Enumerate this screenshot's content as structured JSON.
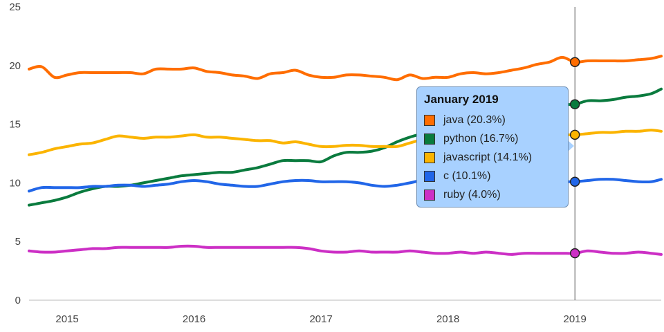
{
  "chart_data": {
    "type": "line",
    "x_ticks": [
      "2015",
      "2016",
      "2017",
      "2018",
      "2019"
    ],
    "y_ticks": [
      "0",
      "5",
      "10",
      "15",
      "20",
      "25"
    ],
    "ylim": [
      0,
      25
    ],
    "xlim": [
      2014.7,
      2019.68
    ],
    "hover_x": 2019.0,
    "x": [
      2014.7,
      2014.8,
      2014.9,
      2015.0,
      2015.1,
      2015.2,
      2015.3,
      2015.4,
      2015.5,
      2015.6,
      2015.7,
      2015.8,
      2015.9,
      2016.0,
      2016.1,
      2016.2,
      2016.3,
      2016.4,
      2016.5,
      2016.6,
      2016.7,
      2016.8,
      2016.9,
      2017.0,
      2017.1,
      2017.2,
      2017.3,
      2017.4,
      2017.5,
      2017.6,
      2017.7,
      2017.8,
      2017.9,
      2018.0,
      2018.1,
      2018.2,
      2018.3,
      2018.4,
      2018.5,
      2018.6,
      2018.7,
      2018.8,
      2018.9,
      2019.0,
      2019.1,
      2019.2,
      2019.3,
      2019.4,
      2019.5,
      2019.6,
      2019.68
    ],
    "series": [
      {
        "name": "java",
        "color": "#ff6d00",
        "tooltip": "java (20.3%)",
        "values": [
          19.7,
          19.9,
          19.0,
          19.2,
          19.4,
          19.4,
          19.4,
          19.4,
          19.4,
          19.3,
          19.7,
          19.7,
          19.7,
          19.8,
          19.5,
          19.4,
          19.2,
          19.1,
          18.9,
          19.3,
          19.4,
          19.6,
          19.2,
          19.0,
          19.0,
          19.2,
          19.2,
          19.1,
          19.0,
          18.8,
          19.2,
          18.9,
          19.0,
          19.0,
          19.3,
          19.4,
          19.3,
          19.4,
          19.6,
          19.8,
          20.1,
          20.3,
          20.7,
          20.3,
          20.4,
          20.4,
          20.4,
          20.4,
          20.5,
          20.6,
          20.8
        ]
      },
      {
        "name": "python",
        "color": "#0a7b3e",
        "tooltip": "python (16.7%)",
        "values": [
          8.1,
          8.3,
          8.5,
          8.8,
          9.2,
          9.5,
          9.7,
          9.7,
          9.8,
          10.0,
          10.2,
          10.4,
          10.6,
          10.7,
          10.8,
          10.9,
          10.9,
          11.1,
          11.3,
          11.6,
          11.9,
          11.9,
          11.9,
          11.8,
          12.3,
          12.6,
          12.6,
          12.7,
          13.0,
          13.5,
          13.9,
          14.2,
          14.5,
          14.8,
          15.1,
          15.3,
          15.5,
          15.7,
          16.0,
          16.3,
          16.5,
          16.7,
          16.7,
          16.7,
          17.0,
          17.0,
          17.1,
          17.3,
          17.4,
          17.6,
          18.0
        ]
      },
      {
        "name": "javascript",
        "color": "#fbb400",
        "tooltip": "javascript (14.1%)",
        "values": [
          12.4,
          12.6,
          12.9,
          13.1,
          13.3,
          13.4,
          13.7,
          14.0,
          13.9,
          13.8,
          13.9,
          13.9,
          14.0,
          14.1,
          13.9,
          13.9,
          13.8,
          13.7,
          13.6,
          13.6,
          13.4,
          13.5,
          13.3,
          13.1,
          13.1,
          13.2,
          13.2,
          13.1,
          13.1,
          13.1,
          13.4,
          13.7,
          13.9,
          14.0,
          14.0,
          14.0,
          14.0,
          14.0,
          14.0,
          14.0,
          14.1,
          14.1,
          14.1,
          14.1,
          14.2,
          14.3,
          14.3,
          14.4,
          14.4,
          14.5,
          14.4
        ]
      },
      {
        "name": "c",
        "color": "#2166e8",
        "tooltip": "c (10.1%)",
        "values": [
          9.3,
          9.6,
          9.6,
          9.6,
          9.6,
          9.7,
          9.7,
          9.8,
          9.8,
          9.7,
          9.8,
          9.9,
          10.1,
          10.2,
          10.1,
          9.9,
          9.8,
          9.7,
          9.7,
          9.9,
          10.1,
          10.2,
          10.2,
          10.1,
          10.1,
          10.1,
          10.0,
          9.8,
          9.7,
          9.8,
          10.0,
          10.2,
          10.0,
          9.8,
          9.7,
          9.7,
          9.7,
          9.6,
          9.6,
          9.7,
          9.8,
          10.0,
          10.1,
          10.1,
          10.2,
          10.3,
          10.3,
          10.2,
          10.1,
          10.1,
          10.3
        ]
      },
      {
        "name": "ruby",
        "color": "#cc2fc5",
        "tooltip": "ruby (4.0%)",
        "values": [
          4.2,
          4.1,
          4.1,
          4.2,
          4.3,
          4.4,
          4.4,
          4.5,
          4.5,
          4.5,
          4.5,
          4.5,
          4.6,
          4.6,
          4.5,
          4.5,
          4.5,
          4.5,
          4.5,
          4.5,
          4.5,
          4.5,
          4.4,
          4.2,
          4.1,
          4.1,
          4.2,
          4.1,
          4.1,
          4.1,
          4.2,
          4.1,
          4.0,
          4.0,
          4.1,
          4.0,
          4.1,
          4.0,
          3.9,
          4.0,
          4.0,
          4.0,
          4.0,
          4.0,
          4.2,
          4.1,
          4.0,
          4.0,
          4.1,
          4.0,
          3.9
        ]
      }
    ]
  },
  "tooltip": {
    "title": "January 2019",
    "rows": [
      {
        "label": "java (20.3%)",
        "color": "#ff6d00"
      },
      {
        "label": "python (16.7%)",
        "color": "#0a7b3e"
      },
      {
        "label": "javascript (14.1%)",
        "color": "#fbb400"
      },
      {
        "label": "c (10.1%)",
        "color": "#2166e8"
      },
      {
        "label": "ruby (4.0%)",
        "color": "#cc2fc5"
      }
    ]
  }
}
